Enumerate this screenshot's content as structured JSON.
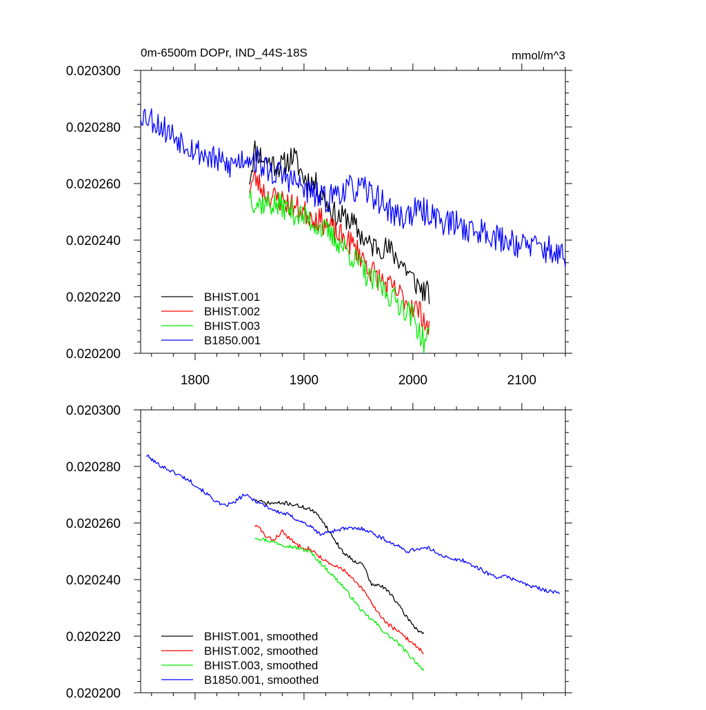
{
  "chart_data": [
    {
      "type": "line",
      "title": "0m-6500m DOPr, IND_44S-18S",
      "units": "mmol/m^3",
      "xlabel": "",
      "ylabel": "",
      "xlim": [
        1750,
        2140
      ],
      "ylim": [
        0.0202,
        0.0203
      ],
      "x_ticks": [
        "1800",
        "1900",
        "2000",
        "2100"
      ],
      "y_ticks": [
        "0.020300",
        "0.020280",
        "0.020260",
        "0.020240",
        "0.020220",
        "0.020200"
      ],
      "legend_position": "bottom-left",
      "series": [
        {
          "name": "BHIST.001",
          "color": "#000000",
          "noise": 4.5e-06,
          "seed": 11,
          "points": [
            [
              1850,
              0.020262
            ],
            [
              1855,
              0.020272
            ],
            [
              1865,
              0.020268
            ],
            [
              1880,
              0.020266
            ],
            [
              1890,
              0.02027
            ],
            [
              1900,
              0.020262
            ],
            [
              1910,
              0.02026
            ],
            [
              1920,
              0.020254
            ],
            [
              1930,
              0.020248
            ],
            [
              1940,
              0.020248
            ],
            [
              1950,
              0.020243
            ],
            [
              1960,
              0.020238
            ],
            [
              1970,
              0.020238
            ],
            [
              1980,
              0.020236
            ],
            [
              1990,
              0.020232
            ],
            [
              2000,
              0.020226
            ],
            [
              2010,
              0.020222
            ],
            [
              2015,
              0.020221
            ]
          ]
        },
        {
          "name": "BHIST.002",
          "color": "#ff0000",
          "noise": 4.5e-06,
          "seed": 23,
          "points": [
            [
              1850,
              0.020259
            ],
            [
              1855,
              0.020262
            ],
            [
              1865,
              0.020256
            ],
            [
              1880,
              0.020254
            ],
            [
              1890,
              0.020252
            ],
            [
              1900,
              0.02025
            ],
            [
              1910,
              0.020248
            ],
            [
              1920,
              0.020246
            ],
            [
              1930,
              0.020242
            ],
            [
              1940,
              0.02024
            ],
            [
              1950,
              0.020236
            ],
            [
              1960,
              0.02023
            ],
            [
              1970,
              0.020226
            ],
            [
              1980,
              0.020223
            ],
            [
              1990,
              0.02022
            ],
            [
              2000,
              0.020217
            ],
            [
              2010,
              0.020213
            ],
            [
              2015,
              0.020207
            ]
          ]
        },
        {
          "name": "BHIST.003",
          "color": "#00ee00",
          "noise": 4.5e-06,
          "seed": 37,
          "points": [
            [
              1850,
              0.020257
            ],
            [
              1855,
              0.020253
            ],
            [
              1865,
              0.020253
            ],
            [
              1880,
              0.020252
            ],
            [
              1890,
              0.02025
            ],
            [
              1900,
              0.020248
            ],
            [
              1910,
              0.020246
            ],
            [
              1920,
              0.020243
            ],
            [
              1930,
              0.02024
            ],
            [
              1940,
              0.020236
            ],
            [
              1950,
              0.020232
            ],
            [
              1960,
              0.020226
            ],
            [
              1970,
              0.020224
            ],
            [
              1980,
              0.02022
            ],
            [
              1990,
              0.020217
            ],
            [
              2000,
              0.020213
            ],
            [
              2010,
              0.020204
            ],
            [
              2015,
              0.020206
            ]
          ]
        },
        {
          "name": "B1850.001",
          "color": "#0000ff",
          "noise": 5e-06,
          "seed": 53,
          "points": [
            [
              1750,
              0.020285
            ],
            [
              1760,
              0.020283
            ],
            [
              1770,
              0.02028
            ],
            [
              1780,
              0.020277
            ],
            [
              1790,
              0.020275
            ],
            [
              1800,
              0.020272
            ],
            [
              1810,
              0.02027
            ],
            [
              1820,
              0.020268
            ],
            [
              1830,
              0.020266
            ],
            [
              1840,
              0.020268
            ],
            [
              1850,
              0.02027
            ],
            [
              1860,
              0.020267
            ],
            [
              1870,
              0.020264
            ],
            [
              1880,
              0.020263
            ],
            [
              1890,
              0.020261
            ],
            [
              1900,
              0.020258
            ],
            [
              1910,
              0.020256
            ],
            [
              1920,
              0.020254
            ],
            [
              1930,
              0.020257
            ],
            [
              1940,
              0.020258
            ],
            [
              1950,
              0.020258
            ],
            [
              1960,
              0.020257
            ],
            [
              1970,
              0.020254
            ],
            [
              1980,
              0.02025
            ],
            [
              1990,
              0.020248
            ],
            [
              2000,
              0.02025
            ],
            [
              2010,
              0.02025
            ],
            [
              2020,
              0.020249
            ],
            [
              2030,
              0.020246
            ],
            [
              2040,
              0.020246
            ],
            [
              2050,
              0.020244
            ],
            [
              2060,
              0.020243
            ],
            [
              2070,
              0.020243
            ],
            [
              2080,
              0.02024
            ],
            [
              2090,
              0.02024
            ],
            [
              2100,
              0.020238
            ],
            [
              2110,
              0.020238
            ],
            [
              2120,
              0.020237
            ],
            [
              2130,
              0.020236
            ],
            [
              2140,
              0.020233
            ]
          ]
        }
      ]
    },
    {
      "type": "line",
      "title": "",
      "xlabel": "",
      "ylabel": "",
      "xlim": [
        1750,
        2140
      ],
      "ylim": [
        0.0202,
        0.0203
      ],
      "y_ticks": [
        "0.020300",
        "0.020280",
        "0.020260",
        "0.020240",
        "0.020220",
        "0.020200"
      ],
      "legend_position": "bottom-left",
      "series": [
        {
          "name": "BHIST.001, smoothed",
          "color": "#000000",
          "noise": 7e-07,
          "seed": 71,
          "points": [
            [
              1855,
              0.020268
            ],
            [
              1865,
              0.020267
            ],
            [
              1875,
              0.020267
            ],
            [
              1885,
              0.020267
            ],
            [
              1895,
              0.020266
            ],
            [
              1905,
              0.020265
            ],
            [
              1915,
              0.020262
            ],
            [
              1925,
              0.020256
            ],
            [
              1935,
              0.02025
            ],
            [
              1945,
              0.020247
            ],
            [
              1955,
              0.020245
            ],
            [
              1962,
              0.020238
            ],
            [
              1970,
              0.020238
            ],
            [
              1980,
              0.020235
            ],
            [
              1990,
              0.020229
            ],
            [
              2000,
              0.020224
            ],
            [
              2005,
              0.020222
            ],
            [
              2010,
              0.020221
            ]
          ]
        },
        {
          "name": "BHIST.002, smoothed",
          "color": "#ff0000",
          "noise": 7e-07,
          "seed": 83,
          "points": [
            [
              1855,
              0.020259
            ],
            [
              1860,
              0.020258
            ],
            [
              1865,
              0.020255
            ],
            [
              1872,
              0.020254
            ],
            [
              1880,
              0.020257
            ],
            [
              1888,
              0.020254
            ],
            [
              1895,
              0.020252
            ],
            [
              1905,
              0.020251
            ],
            [
              1915,
              0.020248
            ],
            [
              1925,
              0.020245
            ],
            [
              1935,
              0.020244
            ],
            [
              1945,
              0.02024
            ],
            [
              1955,
              0.020236
            ],
            [
              1965,
              0.02023
            ],
            [
              1975,
              0.020225
            ],
            [
              1985,
              0.020222
            ],
            [
              1995,
              0.020219
            ],
            [
              2005,
              0.020216
            ],
            [
              2010,
              0.020214
            ]
          ]
        },
        {
          "name": "BHIST.003, smoothed",
          "color": "#00ee00",
          "noise": 7e-07,
          "seed": 97,
          "points": [
            [
              1855,
              0.020255
            ],
            [
              1865,
              0.020254
            ],
            [
              1875,
              0.020253
            ],
            [
              1885,
              0.020252
            ],
            [
              1895,
              0.020251
            ],
            [
              1905,
              0.02025
            ],
            [
              1915,
              0.020246
            ],
            [
              1925,
              0.020242
            ],
            [
              1935,
              0.020238
            ],
            [
              1945,
              0.020233
            ],
            [
              1955,
              0.020228
            ],
            [
              1965,
              0.020225
            ],
            [
              1975,
              0.020221
            ],
            [
              1985,
              0.020218
            ],
            [
              1995,
              0.020214
            ],
            [
              2005,
              0.02021
            ],
            [
              2010,
              0.020208
            ]
          ]
        },
        {
          "name": "B1850.001, smoothed",
          "color": "#0000ff",
          "noise": 7e-07,
          "seed": 101,
          "points": [
            [
              1755,
              0.020284
            ],
            [
              1765,
              0.020281
            ],
            [
              1775,
              0.020279
            ],
            [
              1785,
              0.020277
            ],
            [
              1795,
              0.020275
            ],
            [
              1805,
              0.020272
            ],
            [
              1815,
              0.020269
            ],
            [
              1825,
              0.020266
            ],
            [
              1835,
              0.020267
            ],
            [
              1845,
              0.02027
            ],
            [
              1855,
              0.020268
            ],
            [
              1865,
              0.020266
            ],
            [
              1875,
              0.020264
            ],
            [
              1885,
              0.020263
            ],
            [
              1895,
              0.020261
            ],
            [
              1905,
              0.020259
            ],
            [
              1915,
              0.020256
            ],
            [
              1925,
              0.020257
            ],
            [
              1935,
              0.020258
            ],
            [
              1945,
              0.020258
            ],
            [
              1955,
              0.020258
            ],
            [
              1965,
              0.020256
            ],
            [
              1975,
              0.020254
            ],
            [
              1985,
              0.020252
            ],
            [
              1995,
              0.02025
            ],
            [
              2005,
              0.020251
            ],
            [
              2015,
              0.020251
            ],
            [
              2025,
              0.020249
            ],
            [
              2035,
              0.020247
            ],
            [
              2045,
              0.020247
            ],
            [
              2055,
              0.020245
            ],
            [
              2065,
              0.020243
            ],
            [
              2075,
              0.020241
            ],
            [
              2085,
              0.020241
            ],
            [
              2095,
              0.02024
            ],
            [
              2105,
              0.020238
            ],
            [
              2115,
              0.020237
            ],
            [
              2125,
              0.020236
            ],
            [
              2135,
              0.020235
            ]
          ]
        }
      ]
    }
  ]
}
